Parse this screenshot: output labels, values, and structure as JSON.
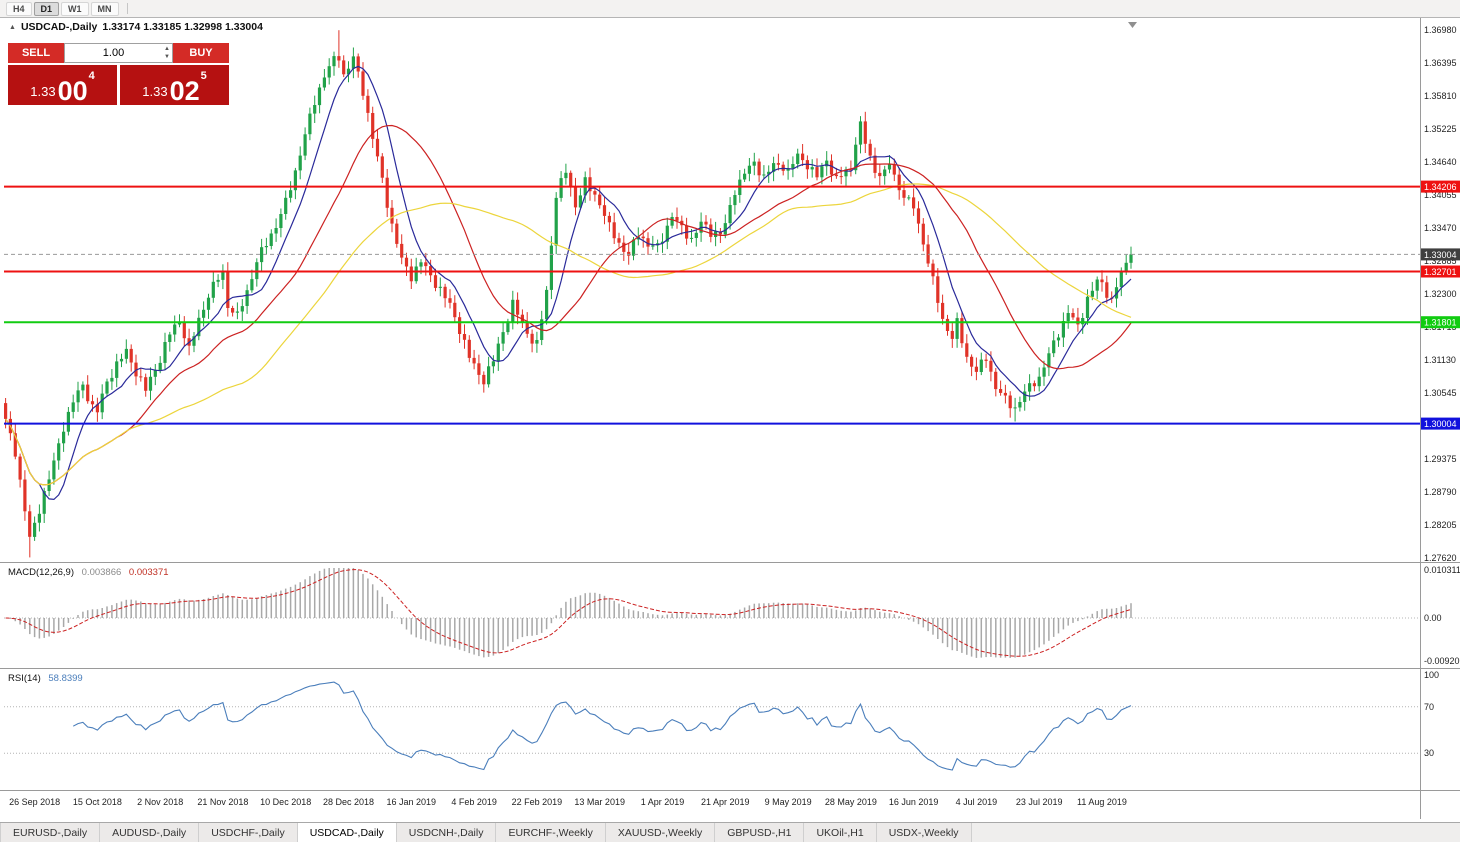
{
  "toolbar": {
    "periods": [
      "H4",
      "D1",
      "W1",
      "MN"
    ],
    "active_index": 1
  },
  "header": {
    "symbol": "USDCAD-,Daily",
    "ohlc": "1.33174 1.33185 1.32998 1.33004"
  },
  "trade": {
    "sell_label": "SELL",
    "buy_label": "BUY",
    "volume": "1.00",
    "sell_price": {
      "base": "1.33",
      "big": "00",
      "sup": "4"
    },
    "buy_price": {
      "base": "1.33",
      "big": "02",
      "sup": "5"
    }
  },
  "chart_data": {
    "type": "candlestick",
    "symbol": "USDCAD-",
    "timeframe": "Daily",
    "last_candle": {
      "open": 1.33174,
      "high": 1.33185,
      "low": 1.32998,
      "close": 1.33004
    },
    "y_axis": {
      "max": 1.3716,
      "min": 1.2762,
      "ticks": [
        "1.36980",
        "1.36395",
        "1.35810",
        "1.35225",
        "1.34640",
        "1.34055",
        "1.33470",
        "1.32885",
        "1.32300",
        "1.31715",
        "1.31130",
        "1.30545",
        "1.29960",
        "1.29375",
        "1.28790",
        "1.28205",
        "1.27620"
      ]
    },
    "x_axis": {
      "labels": [
        "26 Sep 2018",
        "15 Oct 2018",
        "2 Nov 2018",
        "21 Nov 2018",
        "10 Dec 2018",
        "28 Dec 2018",
        "16 Jan 2019",
        "4 Feb 2019",
        "22 Feb 2019",
        "13 Mar 2019",
        "1 Apr 2019",
        "21 Apr 2019",
        "9 May 2019",
        "28 May 2019",
        "16 Jun 2019",
        "4 Jul 2019",
        "23 Jul 2019",
        "11 Aug 2019"
      ],
      "first_label_index": 6,
      "label_step": 13
    },
    "candle_count": 234,
    "price_path": [
      [
        0,
        1.3005
      ],
      [
        2,
        1.295
      ],
      [
        4,
        1.2848
      ],
      [
        5,
        1.2795
      ],
      [
        6,
        1.282
      ],
      [
        8,
        1.2878
      ],
      [
        10,
        1.293
      ],
      [
        12,
        1.2995
      ],
      [
        14,
        1.304
      ],
      [
        16,
        1.3068
      ],
      [
        18,
        1.303
      ],
      [
        19,
        1.3022
      ],
      [
        21,
        1.3075
      ],
      [
        23,
        1.3105
      ],
      [
        25,
        1.3128
      ],
      [
        27,
        1.3092
      ],
      [
        29,
        1.306
      ],
      [
        31,
        1.3098
      ],
      [
        32,
        1.3115
      ],
      [
        34,
        1.316
      ],
      [
        36,
        1.3185
      ],
      [
        38,
        1.313
      ],
      [
        40,
        1.3185
      ],
      [
        42,
        1.3228
      ],
      [
        44,
        1.3258
      ],
      [
        45,
        1.3268
      ],
      [
        46,
        1.321
      ],
      [
        48,
        1.319
      ],
      [
        50,
        1.3235
      ],
      [
        52,
        1.3288
      ],
      [
        54,
        1.332
      ],
      [
        56,
        1.3352
      ],
      [
        58,
        1.3392
      ],
      [
        60,
        1.3448
      ],
      [
        62,
        1.3512
      ],
      [
        64,
        1.3572
      ],
      [
        66,
        1.3618
      ],
      [
        68,
        1.3645
      ],
      [
        69,
        1.3652
      ],
      [
        70,
        1.3618
      ],
      [
        72,
        1.3648
      ],
      [
        74,
        1.359
      ],
      [
        76,
        1.3508
      ],
      [
        78,
        1.3432
      ],
      [
        80,
        1.3352
      ],
      [
        82,
        1.329
      ],
      [
        84,
        1.3262
      ],
      [
        86,
        1.3288
      ],
      [
        88,
        1.3262
      ],
      [
        90,
        1.3238
      ],
      [
        92,
        1.321
      ],
      [
        94,
        1.3168
      ],
      [
        96,
        1.3118
      ],
      [
        98,
        1.3088
      ],
      [
        99,
        1.3078
      ],
      [
        101,
        1.3112
      ],
      [
        103,
        1.3165
      ],
      [
        105,
        1.3212
      ],
      [
        107,
        1.3178
      ],
      [
        109,
        1.3148
      ],
      [
        110,
        1.314
      ],
      [
        112,
        1.3235
      ],
      [
        114,
        1.3405
      ],
      [
        116,
        1.3448
      ],
      [
        118,
        1.3388
      ],
      [
        120,
        1.3428
      ],
      [
        122,
        1.3405
      ],
      [
        123,
        1.3392
      ],
      [
        125,
        1.3348
      ],
      [
        127,
        1.332
      ],
      [
        129,
        1.3298
      ],
      [
        131,
        1.3338
      ],
      [
        133,
        1.3318
      ],
      [
        135,
        1.3312
      ],
      [
        136,
        1.333
      ],
      [
        138,
        1.337
      ],
      [
        140,
        1.3345
      ],
      [
        142,
        1.3328
      ],
      [
        144,
        1.3355
      ],
      [
        146,
        1.334
      ],
      [
        148,
        1.3338
      ],
      [
        149,
        1.3352
      ],
      [
        151,
        1.3415
      ],
      [
        153,
        1.3445
      ],
      [
        155,
        1.3462
      ],
      [
        157,
        1.3438
      ],
      [
        159,
        1.3458
      ],
      [
        161,
        1.3458
      ],
      [
        162,
        1.3448
      ],
      [
        164,
        1.3475
      ],
      [
        166,
        1.346
      ],
      [
        168,
        1.3438
      ],
      [
        170,
        1.3468
      ],
      [
        172,
        1.3432
      ],
      [
        174,
        1.3448
      ],
      [
        175,
        1.3452
      ],
      [
        176,
        1.3502
      ],
      [
        177,
        1.3528
      ],
      [
        178,
        1.3498
      ],
      [
        180,
        1.3448
      ],
      [
        182,
        1.3442
      ],
      [
        183,
        1.3462
      ],
      [
        185,
        1.3418
      ],
      [
        187,
        1.3392
      ],
      [
        188,
        1.3385
      ],
      [
        190,
        1.3322
      ],
      [
        192,
        1.3252
      ],
      [
        194,
        1.3185
      ],
      [
        196,
        1.3152
      ],
      [
        197,
        1.3178
      ],
      [
        199,
        1.3118
      ],
      [
        201,
        1.3092
      ],
      [
        203,
        1.3118
      ],
      [
        205,
        1.3065
      ],
      [
        207,
        1.3042
      ],
      [
        209,
        1.3028
      ],
      [
        211,
        1.3055
      ],
      [
        213,
        1.3075
      ],
      [
        214,
        1.3082
      ],
      [
        216,
        1.3122
      ],
      [
        218,
        1.3162
      ],
      [
        220,
        1.3198
      ],
      [
        222,
        1.3172
      ],
      [
        224,
        1.3222
      ],
      [
        226,
        1.3252
      ],
      [
        227,
        1.3248
      ],
      [
        229,
        1.3218
      ],
      [
        231,
        1.3268
      ],
      [
        233,
        1.33
      ]
    ],
    "wick_overrides": [
      {
        "i": 5,
        "low": 1.2763
      },
      {
        "i": 69,
        "high": 1.3698
      },
      {
        "i": 209,
        "low": 1.3004
      }
    ],
    "current_price": {
      "value": 1.33004,
      "label": "1.33004"
    },
    "hlines": [
      {
        "price": 1.34206,
        "label": "1.34206",
        "color": "#ee1111"
      },
      {
        "price": 1.32701,
        "label": "1.32701",
        "color": "#ee1111"
      },
      {
        "price": 1.31801,
        "label": "1.31801",
        "color": "#11cc11"
      },
      {
        "price": 1.30004,
        "label": "1.30004",
        "color": "#1111dd"
      }
    ],
    "moving_averages": [
      {
        "period": 8,
        "color": "#2a2a9a",
        "name": "ma-fast-blue"
      },
      {
        "period": 24,
        "color": "#cc2222",
        "name": "ma-mid-red"
      },
      {
        "period": 50,
        "color": "#ecd53c",
        "name": "ma-slow-yellow"
      }
    ],
    "candle_colors": {
      "bull": "#21a249",
      "bear": "#e03328"
    },
    "indicators": {
      "macd": {
        "label": "MACD(12,26,9)",
        "values": [
          "0.003866",
          "0.003371"
        ],
        "fast": 12,
        "slow": 26,
        "signal": 9,
        "axis": {
          "top": "0.010311",
          "zero": "0.00",
          "bottom": "-0.00920"
        },
        "colors": {
          "histogram": "#a8a8a8",
          "signal": "#cc2222"
        }
      },
      "rsi": {
        "label": "RSI(14)",
        "value": "58.8399",
        "period": 14,
        "levels": [
          70,
          30
        ],
        "axis": [
          "100",
          "70",
          "30"
        ],
        "color": "#4a7ebb"
      }
    }
  },
  "tabs": {
    "items": [
      "EURUSD-,Daily",
      "AUDUSD-,Daily",
      "USDCHF-,Daily",
      "USDCAD-,Daily",
      "USDCNH-,Daily",
      "EURCHF-,Weekly",
      "XAUUSD-,Weekly",
      "GBPUSD-,H1",
      "UKOil-,H1",
      "USDX-,Weekly"
    ],
    "active_index": 3
  }
}
